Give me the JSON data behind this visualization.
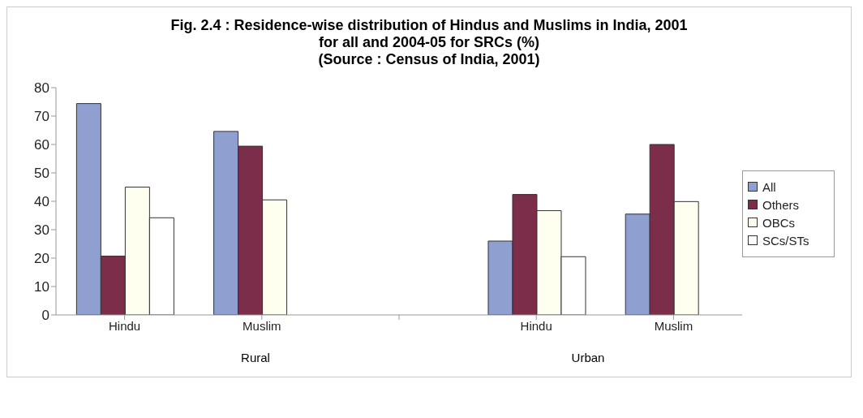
{
  "chart_data": {
    "type": "bar",
    "title": "Fig. 2.4 : Residence-wise distribution of Hindus and Muslims in India, 2001 for all and 2004-05 for SRCs (%)",
    "subtitle": "(Source : Census of India, 2001)",
    "categories": [
      "Hindu",
      "Muslim",
      null,
      "Hindu",
      "Muslim"
    ],
    "series": [
      {
        "name": "All",
        "color": "#8e9fd0",
        "values": [
          74.4,
          64.6,
          null,
          26,
          35.5
        ]
      },
      {
        "name": "Others",
        "color": "#7b2d4a",
        "values": [
          20.7,
          59.4,
          null,
          42.4,
          60
        ]
      },
      {
        "name": "OBCs",
        "color": "#fffff0",
        "values": [
          45,
          40.5,
          null,
          36.7,
          39.9
        ]
      },
      {
        "name": "SCs/STs",
        "color": "#ffffff",
        "values": [
          34.2,
          null,
          null,
          20.5,
          null
        ]
      }
    ],
    "annotations": [
      "Rural",
      "Urban"
    ],
    "ylim": [
      0,
      80
    ],
    "yticks": [
      0,
      10,
      20,
      30,
      40,
      50,
      60,
      70,
      80
    ],
    "grid": false,
    "legend": "right"
  }
}
